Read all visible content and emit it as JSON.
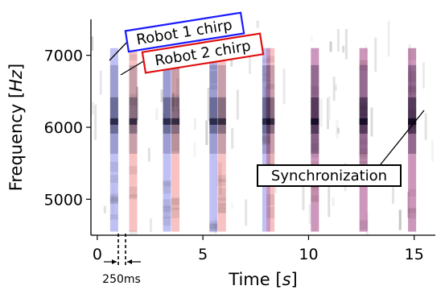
{
  "chart_data": {
    "type": "heatmap",
    "description_type": "spectrogram",
    "title": "",
    "xlabel": "Time [s]",
    "ylabel": "Frequency [Hz]",
    "xlim": [
      -0.3,
      16
    ],
    "ylim": [
      4500,
      7500
    ],
    "xticks": [
      0,
      5,
      10,
      15
    ],
    "yticks": [
      5000,
      6000,
      7000
    ],
    "xlabel_parts": {
      "text": "Time ",
      "unit": "s"
    },
    "ylabel_parts": {
      "text": "Frequency ",
      "unit": "Hz"
    },
    "chirp_band_hz": [
      4550,
      7100
    ],
    "peak_frequency_hz": 6080,
    "series": [
      {
        "name": "Robot 1 chirp",
        "color": "#3a3ae0",
        "times": [
          0.8,
          3.3,
          5.5,
          8.0,
          10.3,
          12.6,
          14.9
        ]
      },
      {
        "name": "Robot 2 chirp",
        "color": "#e84040",
        "times": [
          1.7,
          3.7,
          5.9,
          8.2,
          10.3,
          12.6,
          14.9
        ]
      }
    ],
    "annotations": [
      {
        "id": "robot1",
        "text": "Robot 1 chirp",
        "border_color": "#1a1aff"
      },
      {
        "id": "robot2",
        "text": "Robot 2 chirp",
        "border_color": "#e01010"
      },
      {
        "id": "sync",
        "text": "Synchronization",
        "border_color": "#000000"
      },
      {
        "id": "gap",
        "text": "250ms"
      }
    ]
  }
}
